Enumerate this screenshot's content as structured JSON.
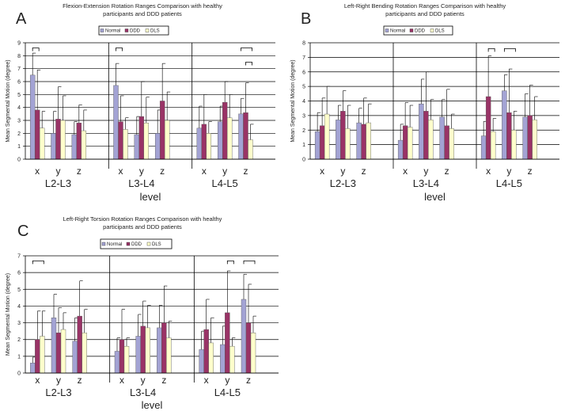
{
  "chart_data": [
    {
      "type": "bar",
      "panel_label": "A",
      "title_lines": [
        "Flexion-Extension Rotation Ranges Comparison with healthy",
        "participants and DDD patients"
      ],
      "ylabel": "Mean Segmental Motion (degree)",
      "xlabel": "level",
      "ylim": [
        0,
        9
      ],
      "yticks": [
        "0",
        "1",
        "2",
        "3",
        "4",
        "5",
        "6",
        "7",
        "8",
        "9"
      ],
      "levels": [
        "L2-L3",
        "L3-L4",
        "L4-L5"
      ],
      "axes": [
        "x",
        "y",
        "z"
      ],
      "legend": [
        "Normal",
        "DDD",
        "DLS"
      ],
      "legend_position": "top-center",
      "grid": true,
      "series": [
        {
          "name": "Normal",
          "values": [
            6.5,
            2.0,
            1.9,
            5.7,
            1.9,
            2.0,
            2.4,
            2.9,
            3.5
          ],
          "error_top": [
            8.2,
            3.7,
            2.9,
            7.4,
            3.3,
            3.8,
            4.1,
            4.1,
            4.7
          ]
        },
        {
          "name": "DDD",
          "values": [
            3.8,
            3.1,
            2.8,
            2.9,
            3.3,
            4.5,
            2.7,
            4.4,
            3.6
          ],
          "error_top": [
            6.9,
            5.6,
            4.2,
            4.9,
            6.0,
            7.4,
            5.0,
            6.0,
            5.9
          ]
        },
        {
          "name": "DLS",
          "values": [
            2.4,
            3.0,
            2.2,
            2.3,
            2.8,
            3.0,
            2.0,
            3.2,
            1.5
          ],
          "error_top": [
            3.7,
            4.9,
            3.8,
            3.2,
            4.8,
            5.2,
            2.9,
            5.0,
            2.7
          ]
        }
      ],
      "significance_brackets": [
        {
          "level": 0,
          "axis": 0,
          "from": "Normal",
          "to": "DDD",
          "y": 8.6
        },
        {
          "level": 1,
          "axis": 0,
          "from": "Normal",
          "to": "DDD",
          "y": 8.6
        },
        {
          "level": 2,
          "axis": 2,
          "from": "Normal",
          "to": "DLS",
          "y": 8.6
        },
        {
          "level": 2,
          "axis": 2,
          "from": "DDD",
          "to": "DLS",
          "y": 7.5
        }
      ]
    },
    {
      "type": "bar",
      "panel_label": "B",
      "title_lines": [
        "Left-Right Bending Rotation Ranges Comparison with healthy",
        "participants and DDD patients"
      ],
      "ylabel": "Mean Segmental Motion (degree)",
      "xlabel": "level",
      "ylim": [
        0,
        8
      ],
      "yticks": [
        "0",
        "1",
        "2",
        "3",
        "4",
        "5",
        "6",
        "7",
        "8"
      ],
      "levels": [
        "L2-L3",
        "L3-L4",
        "L4-L5"
      ],
      "axes": [
        "x",
        "y",
        "z"
      ],
      "legend": [
        "Normal",
        "DDD",
        "DLS"
      ],
      "legend_position": "top-center",
      "grid": true,
      "series": [
        {
          "name": "Normal",
          "values": [
            1.9,
            2.7,
            2.5,
            1.3,
            3.8,
            2.9,
            1.6,
            4.7,
            2.9
          ],
          "error_top": [
            3.2,
            3.7,
            3.5,
            2.4,
            5.5,
            4.1,
            2.6,
            5.8,
            4.5
          ]
        },
        {
          "name": "DDD",
          "values": [
            2.3,
            3.3,
            2.4,
            2.3,
            3.3,
            2.3,
            4.3,
            3.2,
            3.0
          ],
          "error_top": [
            4.2,
            4.7,
            4.2,
            3.9,
            6.0,
            4.8,
            7.1,
            6.2,
            5.1
          ]
        },
        {
          "name": "DLS",
          "values": [
            3.1,
            2.1,
            2.5,
            2.2,
            2.7,
            2.1,
            1.9,
            2.0,
            2.7
          ],
          "error_top": [
            5.0,
            3.7,
            3.8,
            3.7,
            4.1,
            3.1,
            2.8,
            3.3,
            4.3
          ]
        }
      ],
      "significance_brackets": [
        {
          "level": 2,
          "axis": 0,
          "from": "DDD",
          "to": "DLS",
          "y": 7.6
        },
        {
          "level": 2,
          "axis": 1,
          "from": "Normal",
          "to": "DLS",
          "y": 7.6
        }
      ]
    },
    {
      "type": "bar",
      "panel_label": "C",
      "title_lines": [
        "Left-Right Torsion Rotation Ranges Comparison with healthy",
        "participants and DDD patients"
      ],
      "ylabel": "Mean Segmental Motion (degree)",
      "xlabel": "level",
      "ylim": [
        0,
        7
      ],
      "yticks": [
        "0",
        "1",
        "2",
        "3",
        "4",
        "5",
        "6",
        "7"
      ],
      "levels": [
        "L2-L3",
        "L3-L4",
        "L4-L5"
      ],
      "axes": [
        "x",
        "y",
        "z"
      ],
      "legend": [
        "Normal",
        "DDD",
        "DLS"
      ],
      "legend_position": "top-center",
      "grid": true,
      "series": [
        {
          "name": "Normal",
          "values": [
            0.6,
            3.3,
            1.9,
            1.3,
            2.2,
            2.7,
            1.4,
            1.7,
            4.4
          ],
          "error_top": [
            0.95,
            4.7,
            3.3,
            2.1,
            3.5,
            4.05,
            2.5,
            2.8,
            5.9
          ]
        },
        {
          "name": "DDD",
          "values": [
            2.0,
            2.4,
            3.4,
            2.0,
            2.8,
            3.0,
            2.6,
            3.6,
            3.0
          ],
          "error_top": [
            3.7,
            3.9,
            5.5,
            3.8,
            4.3,
            5.2,
            4.4,
            6.1,
            5.3
          ]
        },
        {
          "name": "DLS",
          "values": [
            2.2,
            2.6,
            2.4,
            1.6,
            2.7,
            2.1,
            1.8,
            1.6,
            2.4
          ],
          "error_top": [
            3.7,
            3.6,
            3.8,
            2.1,
            4.05,
            3.1,
            3.3,
            2.1,
            3.4
          ]
        }
      ],
      "significance_brackets": [
        {
          "level": 0,
          "axis": 0,
          "from": "Normal",
          "to": "DLS",
          "y": 6.7
        },
        {
          "level": 2,
          "axis": 1,
          "from": "DDD",
          "to": "DLS",
          "y": 6.7
        },
        {
          "level": 2,
          "axis": 2,
          "from": "Normal",
          "to": "DLS",
          "y": 6.7
        }
      ]
    }
  ],
  "colors": {
    "Normal": "#a3a3d4",
    "DDD": "#993366",
    "DLS": "#ffffcc",
    "grid": "#000000"
  }
}
